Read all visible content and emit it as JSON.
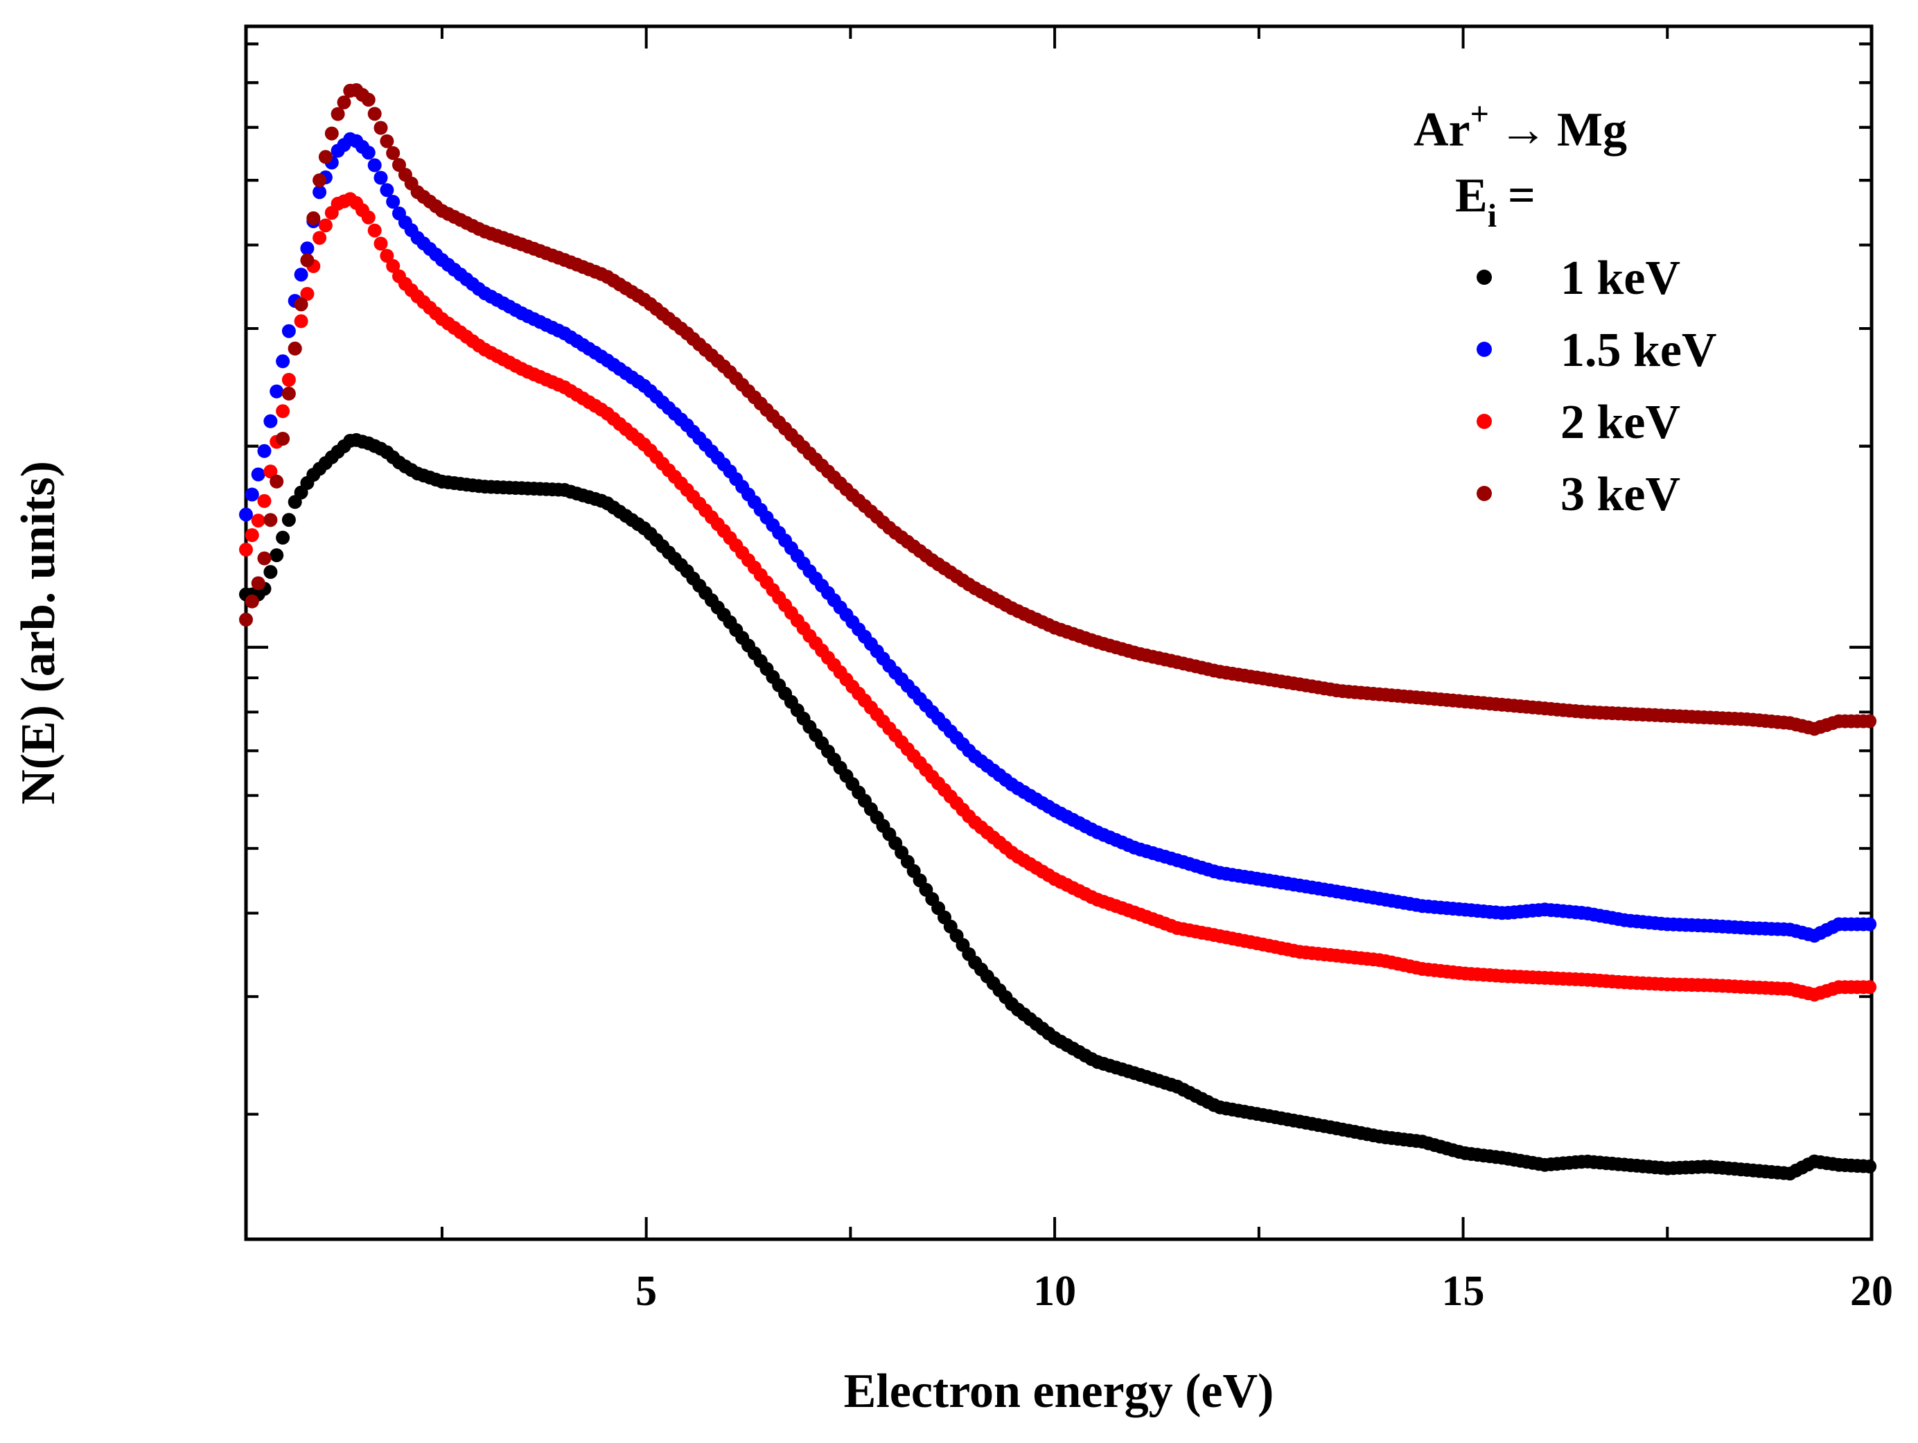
{
  "chart_data": {
    "type": "scatter",
    "title": "",
    "xlabel": "Electron energy (eV)",
    "ylabel": "N(E) (arb. units)",
    "xlim": [
      0.1,
      20
    ],
    "ylim": [
      0.13,
      8.5
    ],
    "y_scale": "log",
    "y_tick_labels_shown": false,
    "x_ticks": [
      5,
      10,
      15,
      20
    ],
    "x_tick_labels": [
      "5",
      "10",
      "15",
      "20"
    ],
    "grid": false,
    "legend": {
      "position": "top-right",
      "title_ion": "Ar",
      "title_ion_sup": "+",
      "title_arrow": "→",
      "title_target": "Mg",
      "subtitle_main": "E",
      "subtitle_sub": "i",
      "subtitle_eq": "="
    },
    "series": [
      {
        "name": "1 keV",
        "color": "#000000",
        "x": [
          0.1,
          0.3,
          0.5,
          0.7,
          0.9,
          1.0,
          1.2,
          1.4,
          1.6,
          1.8,
          2.0,
          2.2,
          2.5,
          3.0,
          3.5,
          4.0,
          4.5,
          5.0,
          5.5,
          6.0,
          6.5,
          7.0,
          7.5,
          8.0,
          8.5,
          9.0,
          9.5,
          10.0,
          10.5,
          11.0,
          11.5,
          12.0,
          12.5,
          13.0,
          13.5,
          14.0,
          14.5,
          15.0,
          15.5,
          16.0,
          16.5,
          17.0,
          17.5,
          18.0,
          18.5,
          19.0,
          19.3,
          19.6,
          20.0
        ],
        "y": [
          1.2,
          1.2,
          1.4,
          1.65,
          1.8,
          1.85,
          1.95,
          2.05,
          2.02,
          1.97,
          1.88,
          1.82,
          1.77,
          1.74,
          1.73,
          1.72,
          1.65,
          1.5,
          1.3,
          1.1,
          0.92,
          0.76,
          0.63,
          0.52,
          0.42,
          0.34,
          0.29,
          0.26,
          0.24,
          0.23,
          0.22,
          0.205,
          0.2,
          0.195,
          0.19,
          0.185,
          0.182,
          0.175,
          0.172,
          0.168,
          0.17,
          0.168,
          0.166,
          0.167,
          0.165,
          0.163,
          0.17,
          0.168,
          0.167
        ]
      },
      {
        "name": "1.5 keV",
        "color": "#0000ff",
        "x": [
          0.1,
          0.3,
          0.5,
          0.7,
          0.9,
          1.0,
          1.2,
          1.4,
          1.6,
          1.8,
          2.0,
          2.2,
          2.5,
          3.0,
          3.5,
          4.0,
          4.5,
          5.0,
          5.5,
          6.0,
          6.5,
          7.0,
          7.5,
          8.0,
          8.5,
          9.0,
          9.5,
          10.0,
          10.5,
          11.0,
          11.5,
          12.0,
          12.5,
          13.0,
          13.5,
          14.0,
          14.5,
          15.0,
          15.5,
          16.0,
          16.5,
          17.0,
          17.5,
          18.0,
          18.5,
          19.0,
          19.3,
          19.6,
          20.0
        ],
        "y": [
          1.58,
          1.9,
          2.5,
          3.3,
          4.2,
          4.8,
          5.5,
          5.8,
          5.5,
          4.9,
          4.4,
          4.1,
          3.8,
          3.4,
          3.15,
          2.95,
          2.7,
          2.45,
          2.15,
          1.85,
          1.55,
          1.3,
          1.1,
          0.93,
          0.8,
          0.69,
          0.62,
          0.57,
          0.53,
          0.5,
          0.48,
          0.46,
          0.45,
          0.44,
          0.43,
          0.42,
          0.41,
          0.405,
          0.4,
          0.405,
          0.4,
          0.39,
          0.385,
          0.383,
          0.38,
          0.378,
          0.37,
          0.385,
          0.385
        ]
      },
      {
        "name": "2 keV",
        "color": "#ff0000",
        "x": [
          0.1,
          0.3,
          0.5,
          0.7,
          0.9,
          1.0,
          1.2,
          1.4,
          1.6,
          1.8,
          2.0,
          2.2,
          2.5,
          3.0,
          3.5,
          4.0,
          4.5,
          5.0,
          5.5,
          6.0,
          6.5,
          7.0,
          7.5,
          8.0,
          8.5,
          9.0,
          9.5,
          10.0,
          10.5,
          11.0,
          11.5,
          12.0,
          12.5,
          13.0,
          13.5,
          14.0,
          14.5,
          15.0,
          15.5,
          16.0,
          16.5,
          17.0,
          17.5,
          18.0,
          18.5,
          19.0,
          19.3,
          19.6,
          20.0
        ],
        "y": [
          1.4,
          1.6,
          2.1,
          2.8,
          3.6,
          4.1,
          4.6,
          4.7,
          4.4,
          3.9,
          3.55,
          3.35,
          3.1,
          2.8,
          2.6,
          2.45,
          2.25,
          2.0,
          1.72,
          1.47,
          1.24,
          1.04,
          0.88,
          0.75,
          0.64,
          0.55,
          0.49,
          0.45,
          0.42,
          0.4,
          0.38,
          0.37,
          0.36,
          0.35,
          0.345,
          0.34,
          0.33,
          0.325,
          0.322,
          0.32,
          0.318,
          0.315,
          0.313,
          0.312,
          0.31,
          0.308,
          0.302,
          0.31,
          0.31
        ]
      },
      {
        "name": "3 keV",
        "color": "#990000",
        "x": [
          0.1,
          0.3,
          0.5,
          0.7,
          0.9,
          1.0,
          1.2,
          1.4,
          1.6,
          1.8,
          2.0,
          2.2,
          2.5,
          3.0,
          3.5,
          4.0,
          4.5,
          5.0,
          5.5,
          6.0,
          6.5,
          7.0,
          7.5,
          8.0,
          8.5,
          9.0,
          9.5,
          10.0,
          10.5,
          11.0,
          11.5,
          12.0,
          12.5,
          13.0,
          13.5,
          14.0,
          14.5,
          15.0,
          15.5,
          16.0,
          16.5,
          17.0,
          17.5,
          18.0,
          18.5,
          19.0,
          19.3,
          19.6,
          20.0
        ],
        "y": [
          1.1,
          1.3,
          1.85,
          2.8,
          4.2,
          5.0,
          6.2,
          6.9,
          6.6,
          5.8,
          5.2,
          4.8,
          4.5,
          4.2,
          4.0,
          3.8,
          3.6,
          3.3,
          2.95,
          2.6,
          2.25,
          1.95,
          1.7,
          1.5,
          1.35,
          1.23,
          1.14,
          1.07,
          1.02,
          0.98,
          0.95,
          0.92,
          0.9,
          0.88,
          0.86,
          0.85,
          0.84,
          0.83,
          0.82,
          0.81,
          0.8,
          0.795,
          0.79,
          0.785,
          0.78,
          0.77,
          0.755,
          0.775,
          0.775
        ]
      }
    ]
  }
}
